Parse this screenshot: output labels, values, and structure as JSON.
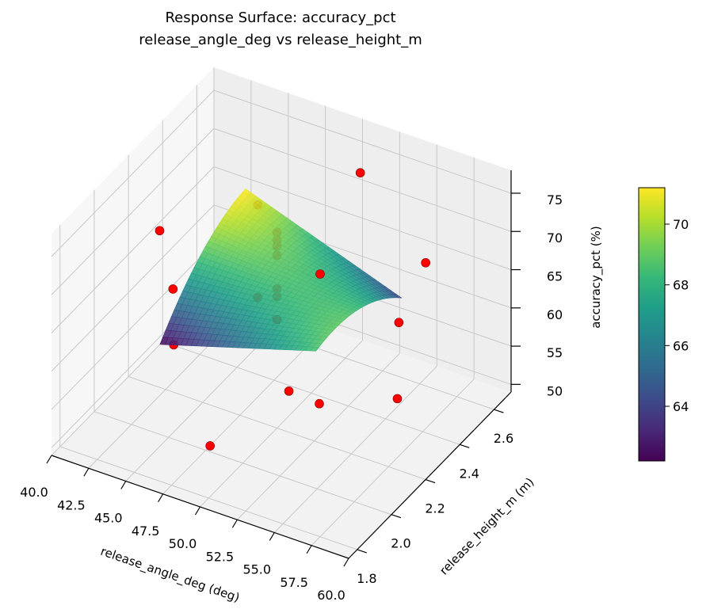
{
  "chart_data": {
    "type": "surface3d",
    "title": "Response Surface: accuracy_pct",
    "subtitle": "release_angle_deg vs release_height_m",
    "xlabel": "release_angle_deg (deg)",
    "ylabel": "release_height_m (m)",
    "zlabel": "accuracy_pct (%)",
    "xlim": [
      40,
      60
    ],
    "ylim": [
      1.75,
      2.7
    ],
    "zlim": [
      49,
      78
    ],
    "x_ticks": [
      "40.0",
      "42.5",
      "45.0",
      "47.5",
      "50.0",
      "52.5",
      "55.0",
      "57.5",
      "60.0"
    ],
    "y_ticks": [
      "1.8",
      "2.0",
      "2.2",
      "2.4",
      "2.6"
    ],
    "z_ticks": [
      "50",
      "55",
      "60",
      "65",
      "70",
      "75"
    ],
    "grid": true,
    "colormap": "viridis",
    "colorbar": {
      "range": [
        62.2,
        71.2
      ],
      "ticks": [
        "64",
        "66",
        "68",
        "70"
      ]
    },
    "surface": {
      "x_range": [
        45,
        55.5
      ],
      "y_range": [
        1.95,
        2.45
      ],
      "model": "quadratic in coded units u,v",
      "coefficients": {
        "b0": 68.5,
        "u": -0.25,
        "v": 1.1,
        "uv": -3.35,
        "u2": 0,
        "v2": -2
      }
    },
    "points_color": "#ff0000",
    "points": [
      {
        "x": 51.0,
        "y": 2.6,
        "z": 73.9
      },
      {
        "x": 42.1,
        "y": 2.2,
        "z": 69.5
      },
      {
        "x": 46.4,
        "y": 2.4,
        "z": 71.2
      },
      {
        "x": 55.4,
        "y": 2.6,
        "z": 65.1
      },
      {
        "x": 52.9,
        "y": 2.2,
        "z": 71.1
      },
      {
        "x": 45.3,
        "y": 2.0,
        "z": 68.6
      },
      {
        "x": 48.7,
        "y": 2.2,
        "z": 65.2
      },
      {
        "x": 55.9,
        "y": 2.4,
        "z": 62.2
      },
      {
        "x": 46.5,
        "y": 1.9,
        "z": 64.4
      },
      {
        "x": 53.1,
        "y": 2.0,
        "z": 60.5
      },
      {
        "x": 56.3,
        "y": 1.9,
        "z": 63.3
      },
      {
        "x": 58.1,
        "y": 2.2,
        "z": 58.3
      },
      {
        "x": 50.1,
        "y": 1.8,
        "z": 55.9
      },
      {
        "x": 50.0,
        "y": 2.2,
        "z": 74.6
      },
      {
        "x": 50.0,
        "y": 2.2,
        "z": 73.6
      },
      {
        "x": 50.0,
        "y": 2.2,
        "z": 72.8
      },
      {
        "x": 50.0,
        "y": 2.2,
        "z": 71.6
      },
      {
        "x": 50.0,
        "y": 2.2,
        "z": 67.2
      },
      {
        "x": 50.0,
        "y": 2.2,
        "z": 66.2
      },
      {
        "x": 50.0,
        "y": 2.2,
        "z": 63.2
      }
    ]
  }
}
